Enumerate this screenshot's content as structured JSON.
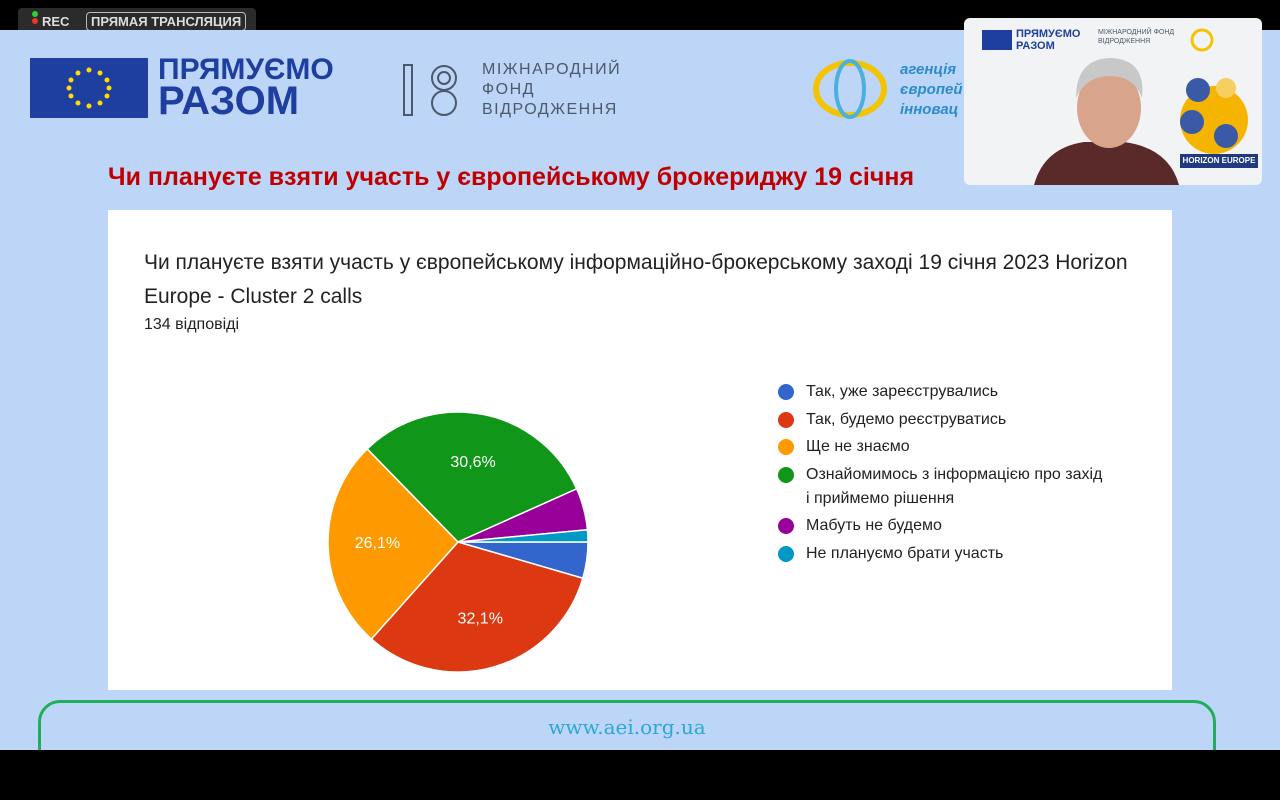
{
  "top_bar": {
    "rec": "REC",
    "live": "ПРЯМАЯ ТРАНСЛЯЦИЯ"
  },
  "header": {
    "logo1_line1": "ПРЯМУЄМО",
    "logo1_line2": "РАЗОМ",
    "logo2": "МІЖНАРОДНИЙ ФОНД ВІДРОДЖЕННЯ",
    "logo3_line1": "агенція",
    "logo3_line2": "європей",
    "logo3_line3": "інновац"
  },
  "slide_title": "Чи плануєте взяти участь у європейському брокериджу 19 січня",
  "video": {
    "logo1": "ПРЯМУЄМО РАЗОМ",
    "logo2": "МІЖНАРОДНИЙ ФОНД ВІДРОДЖЕННЯ",
    "badge": "HORIZON EUROPE"
  },
  "footer": {
    "url": "www.aei.org.ua"
  },
  "chart_data": {
    "type": "pie",
    "title": "Чи плануєте взяти участь у європейському інформаційно-брокерському заході  19 січня 2023  Horizon Europe - Cluster 2 calls",
    "subtitle": "134 відповіді",
    "categories": [
      "Так, уже зареєструвались",
      "Так, будемо реєструватись",
      "Ще не знаємо",
      "Ознайомимось з інформацією про захід і приймемо рішення",
      "Мабуть не будемо",
      "Не плануємо брати участь"
    ],
    "values": [
      4.5,
      32.1,
      26.1,
      30.6,
      5.2,
      1.5
    ],
    "value_labels": [
      null,
      "32,1%",
      "26,1%",
      "30,6%",
      null,
      null
    ],
    "colors": [
      "#3366cc",
      "#dc3912",
      "#ff9900",
      "#109618",
      "#990099",
      "#0099c6"
    ],
    "legend": "right"
  }
}
